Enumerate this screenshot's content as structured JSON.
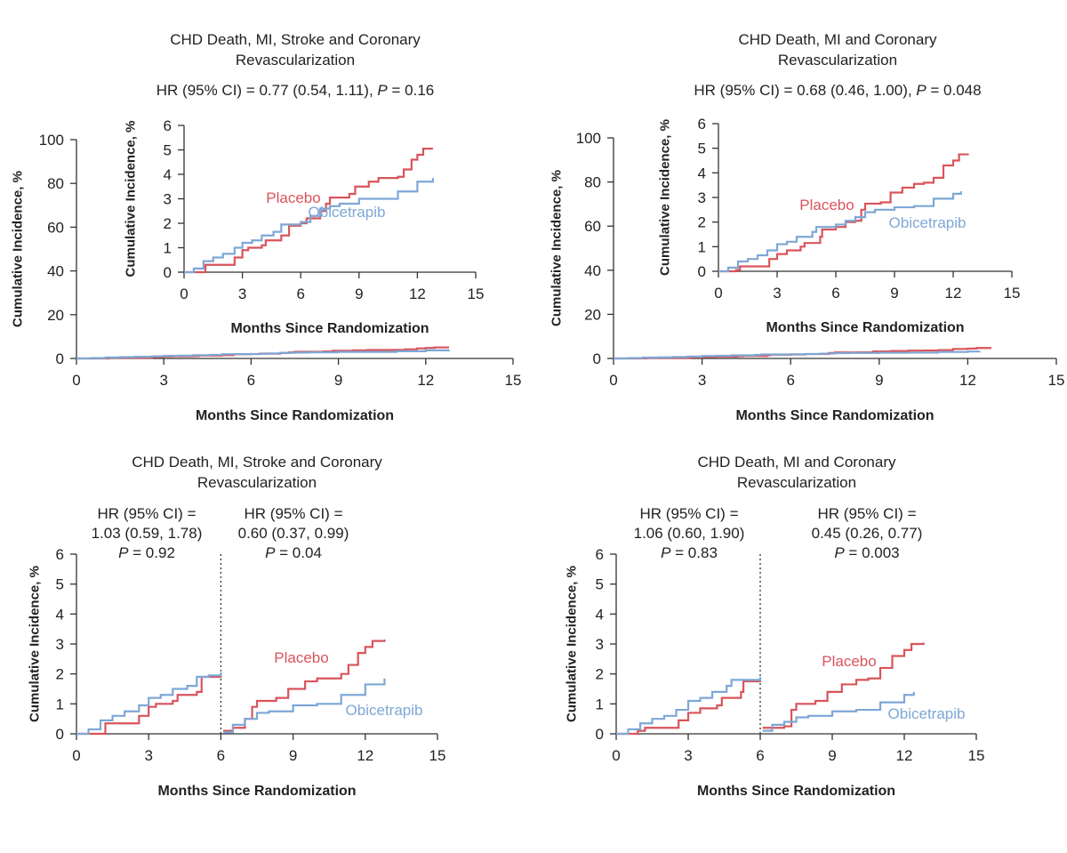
{
  "colors": {
    "placebo": "#d9545b",
    "obicetrapib": "#7ea7d6",
    "axis": "#333333"
  },
  "chart_data": [
    {
      "type": "line",
      "step": true,
      "title": [
        "CHD Death, MI, Stroke and Coronary",
        "Revascularization"
      ],
      "hr_text": [
        {
          "text": "HR (95% CI) = 0.77 (0.54, 1.11), ",
          "p": "P",
          "p_value": " = 0.16"
        }
      ],
      "xlabel": "Months Since Randomization",
      "ylabel": "Cumulative Incidence, %",
      "main": {
        "xlim": [
          0,
          15
        ],
        "ylim": [
          0,
          100
        ],
        "xticks": [
          0,
          3,
          6,
          9,
          12,
          15
        ],
        "yticks": [
          0,
          20,
          40,
          60,
          80,
          100
        ]
      },
      "inset": {
        "xlim": [
          0,
          15
        ],
        "ylim": [
          0,
          6
        ],
        "xticks": [
          0,
          3,
          6,
          9,
          12,
          15
        ],
        "yticks": [
          0,
          1,
          2,
          3,
          4,
          5,
          6
        ],
        "xlabel": "Months Since Randomization",
        "ylabel": "Cumulative Incidence, %"
      },
      "series": [
        {
          "name": "Placebo",
          "color_key": "placebo",
          "points": [
            [
              0,
              0
            ],
            [
              0.9,
              0
            ],
            [
              1.1,
              0.3
            ],
            [
              2.2,
              0.3
            ],
            [
              2.6,
              0.6
            ],
            [
              3,
              0.9
            ],
            [
              3.3,
              1
            ],
            [
              4,
              1.1
            ],
            [
              4.2,
              1.3
            ],
            [
              5,
              1.5
            ],
            [
              5.4,
              1.9
            ],
            [
              6,
              2
            ],
            [
              6.3,
              2.2
            ],
            [
              7,
              2.5
            ],
            [
              7.3,
              2.8
            ],
            [
              7.5,
              3.05
            ],
            [
              8.5,
              3.2
            ],
            [
              8.8,
              3.5
            ],
            [
              9.5,
              3.7
            ],
            [
              10,
              3.85
            ],
            [
              11,
              3.9
            ],
            [
              11.3,
              4.2
            ],
            [
              11.7,
              4.6
            ],
            [
              12,
              4.8
            ],
            [
              12.3,
              5.05
            ],
            [
              12.8,
              5.05
            ]
          ]
        },
        {
          "name": "Obicetrapib",
          "color_key": "obicetrapib",
          "points": [
            [
              0,
              0
            ],
            [
              0.5,
              0.15
            ],
            [
              1,
              0.45
            ],
            [
              1.5,
              0.6
            ],
            [
              2,
              0.75
            ],
            [
              2.6,
              1
            ],
            [
              3,
              1.2
            ],
            [
              3.5,
              1.3
            ],
            [
              4,
              1.5
            ],
            [
              4.6,
              1.65
            ],
            [
              5,
              1.95
            ],
            [
              5.5,
              1.95
            ],
            [
              6,
              2.05
            ],
            [
              6.5,
              2.3
            ],
            [
              7,
              2.6
            ],
            [
              7.5,
              2.7
            ],
            [
              8,
              2.8
            ],
            [
              9,
              3
            ],
            [
              10,
              3
            ],
            [
              11,
              3.3
            ],
            [
              12,
              3.7
            ],
            [
              12.8,
              3.85
            ]
          ]
        }
      ]
    },
    {
      "type": "line",
      "step": true,
      "title": [
        "CHD Death, MI and Coronary",
        "Revascularization"
      ],
      "hr_text": [
        {
          "text": "HR (95% CI) = 0.68 (0.46, 1.00), ",
          "p": "P",
          "p_value": " = 0.048"
        }
      ],
      "xlabel": "Months Since Randomization",
      "ylabel": "Cumulative Incidence, %",
      "main": {
        "xlim": [
          0,
          15
        ],
        "ylim": [
          0,
          100
        ],
        "xticks": [
          0,
          3,
          6,
          9,
          12,
          15
        ],
        "yticks": [
          0,
          20,
          40,
          60,
          80,
          100
        ]
      },
      "inset": {
        "xlim": [
          0,
          15
        ],
        "ylim": [
          0,
          6
        ],
        "xticks": [
          0,
          3,
          6,
          9,
          12,
          15
        ],
        "yticks": [
          0,
          1,
          2,
          3,
          4,
          5,
          6
        ],
        "xlabel": "Months Since Randomization",
        "ylabel": "Cumulative Incidence, %"
      },
      "series": [
        {
          "name": "Placebo",
          "color_key": "placebo",
          "points": [
            [
              0,
              0
            ],
            [
              0.9,
              0.05
            ],
            [
              1.1,
              0.2
            ],
            [
              2.2,
              0.2
            ],
            [
              2.6,
              0.5
            ],
            [
              3,
              0.7
            ],
            [
              3.5,
              0.85
            ],
            [
              4.2,
              1
            ],
            [
              4.4,
              1.15
            ],
            [
              5.2,
              1.4
            ],
            [
              5.3,
              1.7
            ],
            [
              6,
              1.8
            ],
            [
              6.5,
              2
            ],
            [
              7,
              2.05
            ],
            [
              7.3,
              2.5
            ],
            [
              7.5,
              2.75
            ],
            [
              8.3,
              2.8
            ],
            [
              8.8,
              3.2
            ],
            [
              9.4,
              3.4
            ],
            [
              10,
              3.55
            ],
            [
              10.5,
              3.6
            ],
            [
              11,
              3.8
            ],
            [
              11.5,
              4.3
            ],
            [
              12,
              4.5
            ],
            [
              12.3,
              4.75
            ],
            [
              12.8,
              4.75
            ]
          ]
        },
        {
          "name": "Obicetrapib",
          "color_key": "obicetrapib",
          "points": [
            [
              0,
              0
            ],
            [
              0.5,
              0.15
            ],
            [
              1,
              0.4
            ],
            [
              1.5,
              0.5
            ],
            [
              2,
              0.65
            ],
            [
              2.5,
              0.85
            ],
            [
              3,
              1.1
            ],
            [
              3.5,
              1.2
            ],
            [
              4,
              1.4
            ],
            [
              4.8,
              1.6
            ],
            [
              5,
              1.8
            ],
            [
              6,
              1.9
            ],
            [
              6.5,
              2.05
            ],
            [
              7,
              2.2
            ],
            [
              7.5,
              2.4
            ],
            [
              8,
              2.5
            ],
            [
              9,
              2.6
            ],
            [
              10,
              2.65
            ],
            [
              11,
              2.95
            ],
            [
              12,
              3.15
            ],
            [
              12.4,
              3.25
            ]
          ]
        }
      ]
    },
    {
      "type": "line",
      "step": true,
      "title": [
        "CHD Death, MI, Stroke and Coronary",
        "Revascularization"
      ],
      "hr_text": [
        {
          "lines": [
            "HR (95% CI) =",
            "1.03 (0.59, 1.78)"
          ],
          "p": "P",
          "p_value": " = 0.92"
        },
        {
          "lines": [
            "HR (95% CI) =",
            "0.60 (0.37, 0.99)"
          ],
          "p": "P",
          "p_value": " = 0.04"
        }
      ],
      "xlabel": "Months Since Randomization",
      "ylabel": "Cumulative Incidence, %",
      "main": {
        "xlim": [
          0,
          15
        ],
        "ylim": [
          0,
          6
        ],
        "xticks": [
          0,
          3,
          6,
          9,
          12,
          15
        ],
        "yticks": [
          0,
          1,
          2,
          3,
          4,
          5,
          6
        ],
        "landmark_x": 6
      },
      "series": [
        {
          "name": "Placebo",
          "color_key": "placebo",
          "segments": [
            [
              [
                0,
                0
              ],
              [
                0.9,
                0
              ],
              [
                1.2,
                0.35
              ],
              [
                2.2,
                0.35
              ],
              [
                2.6,
                0.6
              ],
              [
                3,
                0.9
              ],
              [
                3.3,
                1
              ],
              [
                4,
                1.1
              ],
              [
                4.2,
                1.3
              ],
              [
                5,
                1.4
              ],
              [
                5.2,
                1.9
              ],
              [
                6,
                2.0
              ]
            ],
            [
              [
                6.1,
                0.1
              ],
              [
                6.5,
                0.2
              ],
              [
                7,
                0.5
              ],
              [
                7.3,
                0.9
              ],
              [
                7.5,
                1.1
              ],
              [
                8.3,
                1.2
              ],
              [
                8.8,
                1.5
              ],
              [
                9.5,
                1.75
              ],
              [
                10,
                1.85
              ],
              [
                11,
                2
              ],
              [
                11.3,
                2.3
              ],
              [
                11.7,
                2.7
              ],
              [
                12,
                2.9
              ],
              [
                12.3,
                3.1
              ],
              [
                12.8,
                3.15
              ]
            ]
          ]
        },
        {
          "name": "Obicetrapib",
          "color_key": "obicetrapib",
          "segments": [
            [
              [
                0,
                0
              ],
              [
                0.5,
                0.15
              ],
              [
                1,
                0.45
              ],
              [
                1.5,
                0.6
              ],
              [
                2,
                0.75
              ],
              [
                2.6,
                0.95
              ],
              [
                3,
                1.2
              ],
              [
                3.5,
                1.3
              ],
              [
                4,
                1.5
              ],
              [
                4.6,
                1.6
              ],
              [
                5,
                1.9
              ],
              [
                5.5,
                1.95
              ],
              [
                6,
                2.05
              ]
            ],
            [
              [
                6.1,
                0.05
              ],
              [
                6.5,
                0.3
              ],
              [
                7,
                0.5
              ],
              [
                7.5,
                0.7
              ],
              [
                8,
                0.75
              ],
              [
                9,
                0.95
              ],
              [
                10,
                1
              ],
              [
                11,
                1.3
              ],
              [
                12,
                1.65
              ],
              [
                12.8,
                1.85
              ]
            ]
          ]
        }
      ]
    },
    {
      "type": "line",
      "step": true,
      "title": [
        "CHD Death, MI and Coronary",
        "Revascularization"
      ],
      "hr_text": [
        {
          "lines": [
            "HR (95% CI) =",
            "1.06 (0.60, 1.90)"
          ],
          "p": "P",
          "p_value": " = 0.83"
        },
        {
          "lines": [
            "HR (95% CI) =",
            "0.45 (0.26, 0.77)"
          ],
          "p": "P",
          "p_value": " = 0.003"
        }
      ],
      "xlabel": "Months Since Randomization",
      "ylabel": "Cumulative Incidence, %",
      "main": {
        "xlim": [
          0,
          15
        ],
        "ylim": [
          0,
          6
        ],
        "xticks": [
          0,
          3,
          6,
          9,
          12,
          15
        ],
        "yticks": [
          0,
          1,
          2,
          3,
          4,
          5,
          6
        ],
        "landmark_x": 6
      },
      "series": [
        {
          "name": "Placebo",
          "color_key": "placebo",
          "segments": [
            [
              [
                0,
                0
              ],
              [
                0.9,
                0.1
              ],
              [
                1.2,
                0.2
              ],
              [
                2.2,
                0.2
              ],
              [
                2.6,
                0.45
              ],
              [
                3,
                0.7
              ],
              [
                3.5,
                0.85
              ],
              [
                4.2,
                0.95
              ],
              [
                4.4,
                1.2
              ],
              [
                5.2,
                1.4
              ],
              [
                5.3,
                1.75
              ],
              [
                6,
                1.8
              ]
            ],
            [
              [
                6.1,
                0.2
              ],
              [
                7,
                0.25
              ],
              [
                7.3,
                0.8
              ],
              [
                7.5,
                1
              ],
              [
                8.3,
                1.1
              ],
              [
                8.8,
                1.4
              ],
              [
                9.4,
                1.65
              ],
              [
                10,
                1.8
              ],
              [
                10.5,
                1.85
              ],
              [
                11,
                2.2
              ],
              [
                11.5,
                2.6
              ],
              [
                12,
                2.8
              ],
              [
                12.3,
                3
              ],
              [
                12.8,
                3.05
              ]
            ]
          ]
        },
        {
          "name": "Obicetrapib",
          "color_key": "obicetrapib",
          "segments": [
            [
              [
                0,
                0
              ],
              [
                0.5,
                0.15
              ],
              [
                1,
                0.35
              ],
              [
                1.5,
                0.5
              ],
              [
                2,
                0.6
              ],
              [
                2.5,
                0.8
              ],
              [
                3,
                1.1
              ],
              [
                3.5,
                1.2
              ],
              [
                4,
                1.4
              ],
              [
                4.6,
                1.6
              ],
              [
                4.8,
                1.8
              ],
              [
                6,
                1.9
              ]
            ],
            [
              [
                6.1,
                0.1
              ],
              [
                6.5,
                0.3
              ],
              [
                7,
                0.4
              ],
              [
                7.5,
                0.55
              ],
              [
                8,
                0.6
              ],
              [
                9,
                0.75
              ],
              [
                10,
                0.8
              ],
              [
                11,
                1.05
              ],
              [
                12,
                1.3
              ],
              [
                12.4,
                1.4
              ]
            ]
          ]
        }
      ]
    }
  ]
}
